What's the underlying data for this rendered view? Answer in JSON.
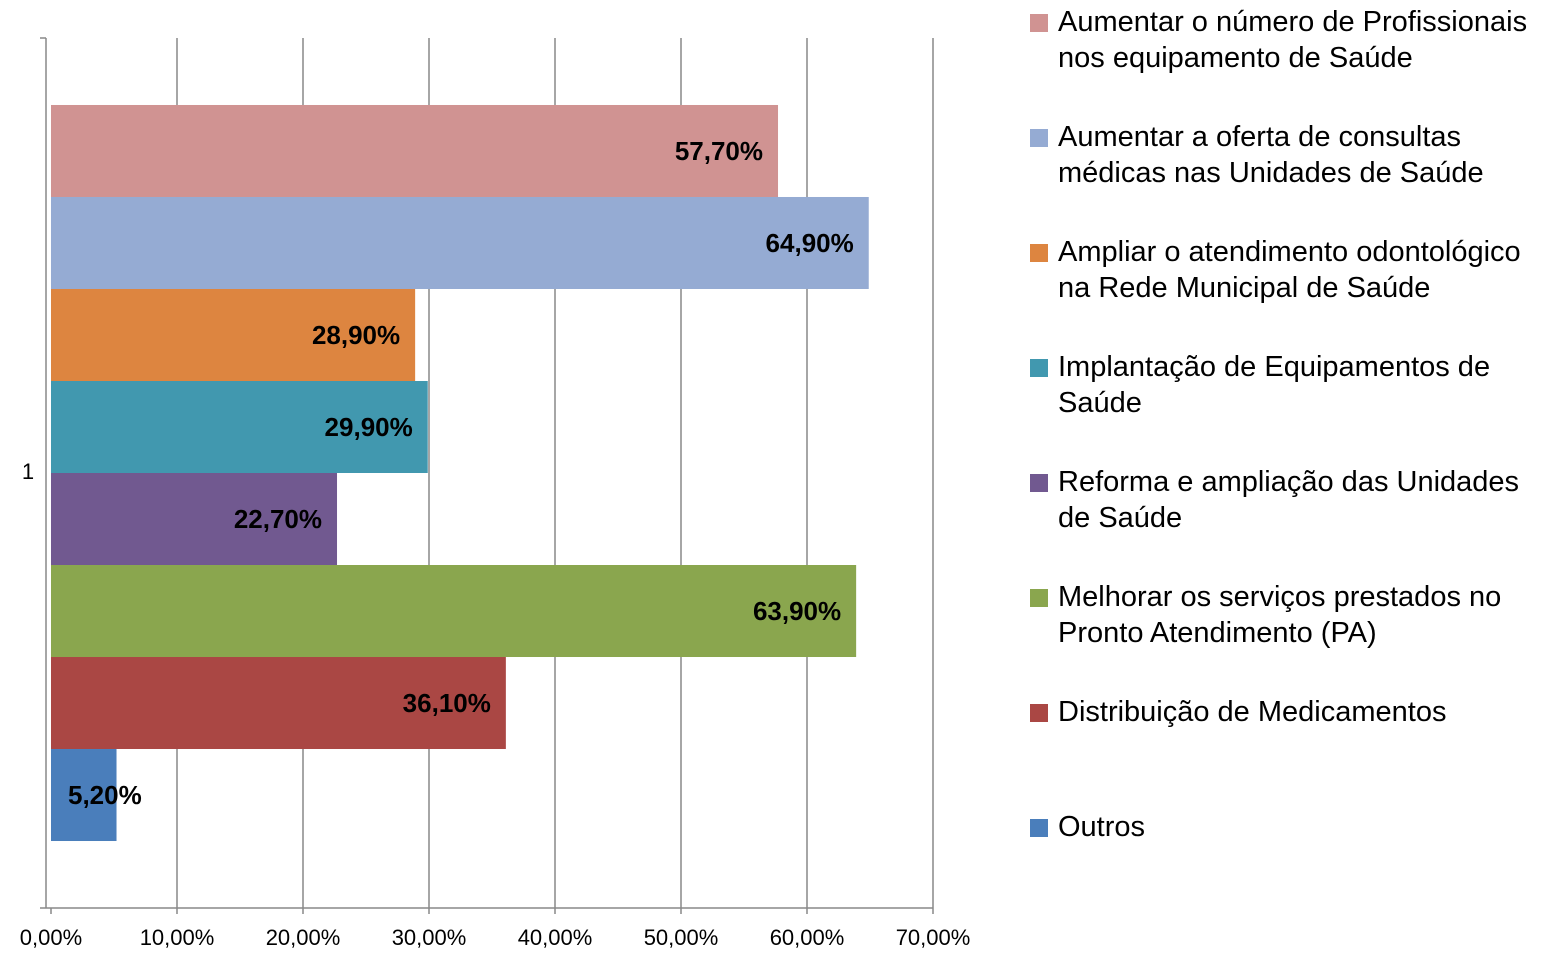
{
  "chart_data": {
    "type": "bar",
    "orientation": "horizontal",
    "categories": [
      "1"
    ],
    "series": [
      {
        "name": "Aumentar o número de Profissionais nos equipamento de Saúde",
        "color": "#d09392",
        "values": [
          57.7
        ],
        "value_labels": [
          "57,70%"
        ]
      },
      {
        "name": "Aumentar a oferta de consultas médicas nas Unidades de Saúde",
        "color": "#95abd3",
        "values": [
          64.9
        ],
        "value_labels": [
          "64,90%"
        ]
      },
      {
        "name": "Ampliar o atendimento odontológico na Rede Municipal de Saúde",
        "color": "#dd8540",
        "values": [
          28.9
        ],
        "value_labels": [
          "28,90%"
        ]
      },
      {
        "name": "Implantação de Equipamentos de Saúde",
        "color": "#4198af",
        "values": [
          29.9
        ],
        "value_labels": [
          "29,90%"
        ]
      },
      {
        "name": "Reforma e ampliação das Unidades de Saúde",
        "color": "#715990",
        "values": [
          22.7
        ],
        "value_labels": [
          "22,70%"
        ]
      },
      {
        "name": "Melhorar os serviços prestados no Pronto Atendimento (PA)",
        "color": "#8aa64e",
        "values": [
          63.9
        ],
        "value_labels": [
          "63,90%"
        ]
      },
      {
        "name": "Distribuição de Medicamentos",
        "color": "#aa4744",
        "values": [
          36.1
        ],
        "value_labels": [
          "36,10%"
        ]
      },
      {
        "name": "Outros",
        "color": "#4a7ebb",
        "values": [
          5.2
        ],
        "value_labels": [
          "5,20%"
        ]
      }
    ],
    "xlim": [
      0,
      70
    ],
    "xticks": [
      {
        "value": 0,
        "label": "0,00%"
      },
      {
        "value": 10,
        "label": "10,00%"
      },
      {
        "value": 20,
        "label": "20,00%"
      },
      {
        "value": 30,
        "label": "30,00%"
      },
      {
        "value": 40,
        "label": "40,00%"
      },
      {
        "value": 50,
        "label": "50,00%"
      },
      {
        "value": 60,
        "label": "60,00%"
      },
      {
        "value": 70,
        "label": "70,00%"
      }
    ],
    "grid": true,
    "legend": "right"
  }
}
